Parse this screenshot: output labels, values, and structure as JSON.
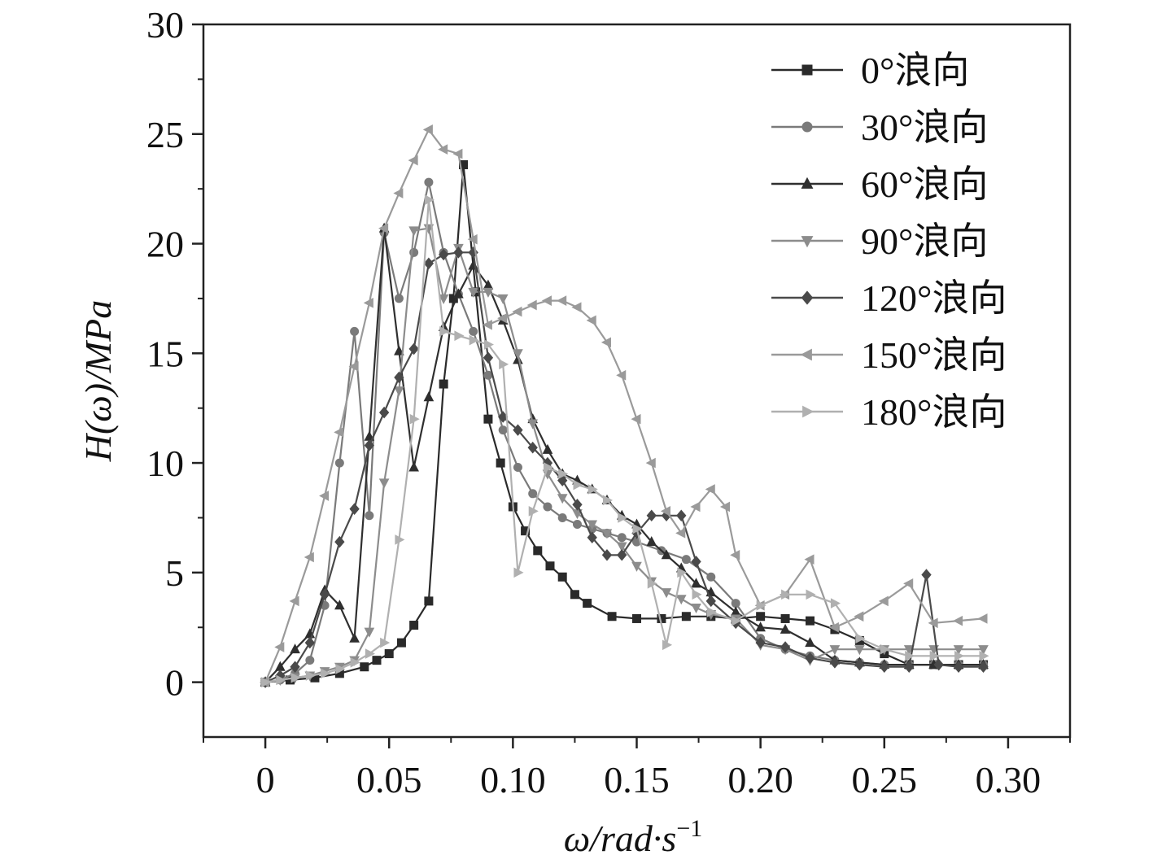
{
  "chart_data": {
    "type": "line",
    "xlabel": "ω/rad·s",
    "xlabel_sup": "−1",
    "ylabel": "H(ω)/MPa",
    "xlim": [
      -0.025,
      0.325
    ],
    "ylim": [
      -2.5,
      30
    ],
    "x_ticks": [
      0,
      0.05,
      0.1,
      0.15,
      0.2,
      0.25,
      0.3
    ],
    "x_tick_labels": [
      "0",
      "0.05",
      "0.10",
      "0.15",
      "0.20",
      "0.25",
      "0.30"
    ],
    "y_ticks": [
      0,
      5,
      10,
      15,
      20,
      25,
      30
    ],
    "y_tick_labels": [
      "0",
      "5",
      "10",
      "15",
      "20",
      "25",
      "30"
    ],
    "legend_position": "top-right",
    "grid": false,
    "series": [
      {
        "name": "0°浪向",
        "marker": "square",
        "color": "#2a2a2a",
        "x": [
          0,
          0.01,
          0.02,
          0.03,
          0.04,
          0.045,
          0.05,
          0.055,
          0.06,
          0.066,
          0.072,
          0.076,
          0.08,
          0.085,
          0.09,
          0.095,
          0.1,
          0.105,
          0.11,
          0.115,
          0.12,
          0.125,
          0.13,
          0.14,
          0.15,
          0.16,
          0.17,
          0.18,
          0.19,
          0.2,
          0.21,
          0.22,
          0.23,
          0.24,
          0.25,
          0.26,
          0.27,
          0.28,
          0.29
        ],
        "y": [
          0,
          0.1,
          0.2,
          0.4,
          0.7,
          1.0,
          1.3,
          1.8,
          2.6,
          3.7,
          13.6,
          17.5,
          23.6,
          17.8,
          12.0,
          10.0,
          8.0,
          6.9,
          6.0,
          5.3,
          4.8,
          4.0,
          3.6,
          3.0,
          2.9,
          2.9,
          3.0,
          3.0,
          2.9,
          3.0,
          2.9,
          2.8,
          2.4,
          1.9,
          1.3,
          0.8,
          0.8,
          0.8,
          0.8
        ]
      },
      {
        "name": "30°浪向",
        "marker": "circle",
        "color": "#7a7a7a",
        "x": [
          0,
          0.006,
          0.012,
          0.018,
          0.024,
          0.03,
          0.036,
          0.042,
          0.048,
          0.054,
          0.06,
          0.066,
          0.072,
          0.078,
          0.084,
          0.09,
          0.096,
          0.102,
          0.108,
          0.114,
          0.12,
          0.126,
          0.132,
          0.138,
          0.144,
          0.15,
          0.16,
          0.17,
          0.18,
          0.19,
          0.2,
          0.21,
          0.22,
          0.23,
          0.24,
          0.25,
          0.26,
          0.27,
          0.28,
          0.29
        ],
        "y": [
          0,
          0.1,
          0.4,
          1.0,
          3.5,
          10.0,
          16.0,
          7.6,
          20.5,
          17.5,
          19.6,
          22.8,
          19.6,
          17.7,
          16.0,
          14.0,
          11.5,
          9.8,
          8.6,
          8.0,
          7.5,
          7.2,
          7.0,
          6.8,
          6.6,
          6.4,
          6.0,
          5.6,
          4.8,
          3.6,
          2.0,
          1.5,
          1.2,
          1.0,
          0.9,
          0.8,
          0.8,
          0.8,
          0.8,
          0.8
        ]
      },
      {
        "name": "60°浪向",
        "marker": "triangle-up",
        "color": "#2f2f2f",
        "x": [
          0,
          0.006,
          0.012,
          0.018,
          0.024,
          0.03,
          0.036,
          0.042,
          0.048,
          0.054,
          0.06,
          0.066,
          0.072,
          0.078,
          0.084,
          0.09,
          0.096,
          0.102,
          0.108,
          0.114,
          0.12,
          0.126,
          0.132,
          0.138,
          0.144,
          0.15,
          0.156,
          0.162,
          0.168,
          0.174,
          0.18,
          0.19,
          0.2,
          0.21,
          0.22,
          0.23,
          0.24,
          0.25,
          0.26,
          0.27,
          0.28,
          0.29
        ],
        "y": [
          0,
          0.7,
          1.5,
          2.2,
          4.2,
          3.5,
          2.0,
          11.2,
          20.7,
          15.1,
          9.8,
          13.0,
          16.2,
          17.7,
          19.0,
          18.1,
          16.5,
          14.7,
          12.0,
          10.6,
          9.5,
          9.2,
          8.8,
          8.3,
          7.6,
          7.2,
          6.4,
          5.8,
          5.2,
          4.5,
          4.1,
          3.2,
          2.5,
          2.4,
          1.8,
          1.0,
          0.9,
          0.8,
          0.8,
          0.8,
          0.8,
          0.8
        ]
      },
      {
        "name": "90°浪向",
        "marker": "triangle-down",
        "color": "#8c8c8c",
        "x": [
          0,
          0.006,
          0.012,
          0.018,
          0.024,
          0.03,
          0.036,
          0.042,
          0.048,
          0.054,
          0.06,
          0.066,
          0.072,
          0.078,
          0.084,
          0.09,
          0.096,
          0.102,
          0.108,
          0.114,
          0.12,
          0.126,
          0.132,
          0.138,
          0.144,
          0.15,
          0.156,
          0.162,
          0.168,
          0.174,
          0.18,
          0.19,
          0.2,
          0.21,
          0.22,
          0.23,
          0.24,
          0.25,
          0.26,
          0.27,
          0.28,
          0.29
        ],
        "y": [
          0,
          0.1,
          0.2,
          0.3,
          0.5,
          0.7,
          1.0,
          2.3,
          9.1,
          13.3,
          20.6,
          20.7,
          17.5,
          19.8,
          17.8,
          17.8,
          17.5,
          15.0,
          11.8,
          9.5,
          8.4,
          7.7,
          7.2,
          6.8,
          6.2,
          5.3,
          4.6,
          4.1,
          3.8,
          3.4,
          3.1,
          2.9,
          1.7,
          1.5,
          1.0,
          1.5,
          1.5,
          1.5,
          1.5,
          1.5,
          1.5,
          1.5
        ]
      },
      {
        "name": "120°浪向",
        "marker": "diamond",
        "color": "#4a4a4a",
        "x": [
          0,
          0.006,
          0.012,
          0.018,
          0.024,
          0.03,
          0.036,
          0.042,
          0.048,
          0.054,
          0.06,
          0.066,
          0.072,
          0.078,
          0.084,
          0.09,
          0.096,
          0.102,
          0.108,
          0.114,
          0.12,
          0.126,
          0.132,
          0.138,
          0.144,
          0.15,
          0.156,
          0.162,
          0.168,
          0.174,
          0.18,
          0.19,
          0.2,
          0.21,
          0.22,
          0.23,
          0.24,
          0.25,
          0.26,
          0.267,
          0.272,
          0.28,
          0.29
        ],
        "y": [
          0,
          0.3,
          0.7,
          1.8,
          4.0,
          6.4,
          7.9,
          10.8,
          12.3,
          13.9,
          15.2,
          19.1,
          19.5,
          19.6,
          19.6,
          14.8,
          12.1,
          11.5,
          10.7,
          10.0,
          9.2,
          8.1,
          6.6,
          5.8,
          5.8,
          6.8,
          7.6,
          7.6,
          7.6,
          5.5,
          3.7,
          2.7,
          1.8,
          1.6,
          1.1,
          0.9,
          0.8,
          0.7,
          0.7,
          4.9,
          0.8,
          0.7,
          0.7
        ]
      },
      {
        "name": "150°浪向",
        "marker": "triangle-left",
        "color": "#9a9a9a",
        "x": [
          0,
          0.006,
          0.012,
          0.018,
          0.024,
          0.03,
          0.036,
          0.042,
          0.048,
          0.054,
          0.06,
          0.066,
          0.072,
          0.078,
          0.084,
          0.09,
          0.096,
          0.102,
          0.108,
          0.114,
          0.12,
          0.126,
          0.132,
          0.138,
          0.144,
          0.15,
          0.156,
          0.162,
          0.168,
          0.174,
          0.18,
          0.186,
          0.19,
          0.2,
          0.21,
          0.22,
          0.23,
          0.24,
          0.25,
          0.26,
          0.27,
          0.28,
          0.29
        ],
        "y": [
          0,
          1.6,
          3.7,
          5.7,
          8.5,
          11.4,
          14.4,
          17.3,
          20.7,
          22.3,
          23.8,
          25.2,
          24.3,
          24.1,
          20.2,
          16.3,
          16.6,
          16.9,
          17.2,
          17.4,
          17.4,
          17.1,
          16.5,
          15.5,
          14.0,
          12.0,
          10.0,
          7.8,
          6.8,
          8.0,
          8.8,
          8.0,
          5.8,
          3.5,
          4.0,
          5.6,
          2.5,
          3.0,
          3.7,
          4.5,
          2.7,
          2.8,
          2.9
        ]
      },
      {
        "name": "180°浪向",
        "marker": "triangle-right",
        "color": "#b0b0b0",
        "x": [
          0,
          0.006,
          0.012,
          0.018,
          0.024,
          0.03,
          0.036,
          0.042,
          0.048,
          0.054,
          0.06,
          0.066,
          0.072,
          0.078,
          0.084,
          0.09,
          0.096,
          0.102,
          0.108,
          0.114,
          0.12,
          0.126,
          0.132,
          0.138,
          0.144,
          0.15,
          0.156,
          0.162,
          0.168,
          0.174,
          0.18,
          0.19,
          0.2,
          0.21,
          0.22,
          0.23,
          0.24,
          0.25,
          0.26,
          0.27,
          0.28,
          0.29
        ],
        "y": [
          0,
          0.1,
          0.2,
          0.3,
          0.4,
          0.6,
          0.9,
          1.3,
          1.8,
          6.5,
          12.0,
          22.0,
          16.0,
          15.8,
          15.6,
          15.4,
          14.5,
          5.0,
          7.8,
          9.8,
          9.5,
          9.0,
          8.8,
          8.3,
          7.5,
          7.0,
          4.5,
          1.7,
          5.0,
          4.0,
          3.2,
          2.8,
          3.5,
          4.0,
          4.0,
          3.6,
          2.0,
          1.5,
          1.2,
          1.2,
          1.2,
          1.2
        ]
      }
    ]
  }
}
